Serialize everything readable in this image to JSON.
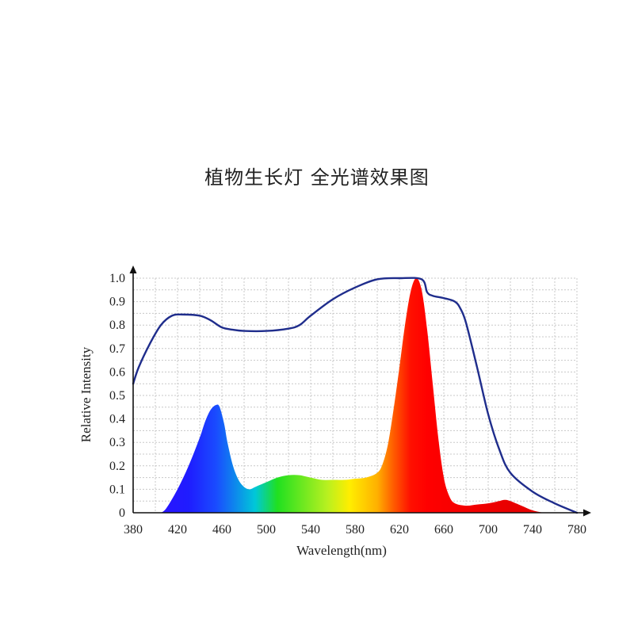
{
  "chart_data": {
    "type": "area",
    "title": "植物生长灯 全光谱效果图",
    "xlabel": "Wavelength(nm)",
    "ylabel": "Relative Intensity",
    "xlim": [
      380,
      780
    ],
    "ylim": [
      0,
      1.0
    ],
    "x_ticks": [
      "380",
      "420",
      "460",
      "500",
      "540",
      "580",
      "620",
      "660",
      "700",
      "740",
      "780"
    ],
    "y_ticks": [
      "0",
      "0.1",
      "0.2",
      "0.3",
      "0.4",
      "0.5",
      "0.6",
      "0.7",
      "0.8",
      "0.9",
      "1.0"
    ],
    "grid": true,
    "series": [
      {
        "kind": "line",
        "color": "#1f2d8c",
        "x": [
          380,
          385,
          395,
          405,
          415,
          425,
          440,
          450,
          460,
          470,
          480,
          500,
          520,
          530,
          540,
          560,
          580,
          600,
          620,
          640,
          645,
          650,
          660,
          670,
          675,
          680,
          690,
          700,
          710,
          720,
          740,
          760,
          780
        ],
        "y": [
          0.55,
          0.62,
          0.72,
          0.8,
          0.84,
          0.845,
          0.84,
          0.82,
          0.79,
          0.78,
          0.775,
          0.775,
          0.785,
          0.8,
          0.84,
          0.91,
          0.96,
          0.995,
          1.0,
          0.995,
          0.94,
          0.925,
          0.915,
          0.9,
          0.87,
          0.81,
          0.62,
          0.42,
          0.27,
          0.17,
          0.09,
          0.04,
          0.0
        ]
      },
      {
        "kind": "area",
        "fill": "spectrum",
        "x": [
          405,
          410,
          420,
          430,
          440,
          445,
          450,
          455,
          458,
          462,
          465,
          470,
          475,
          480,
          485,
          490,
          500,
          510,
          520,
          530,
          540,
          550,
          560,
          570,
          580,
          590,
          600,
          605,
          610,
          615,
          620,
          625,
          630,
          635,
          640,
          645,
          650,
          655,
          660,
          665,
          670,
          680,
          690,
          700,
          710,
          715,
          720,
          730,
          740,
          750
        ],
        "y": [
          0.0,
          0.02,
          0.1,
          0.2,
          0.32,
          0.39,
          0.44,
          0.46,
          0.45,
          0.38,
          0.3,
          0.2,
          0.14,
          0.11,
          0.1,
          0.11,
          0.13,
          0.15,
          0.16,
          0.16,
          0.15,
          0.14,
          0.14,
          0.14,
          0.145,
          0.15,
          0.17,
          0.21,
          0.3,
          0.45,
          0.62,
          0.8,
          0.94,
          1.0,
          0.95,
          0.78,
          0.55,
          0.32,
          0.15,
          0.07,
          0.04,
          0.03,
          0.035,
          0.04,
          0.05,
          0.055,
          0.05,
          0.03,
          0.01,
          0.0
        ]
      }
    ]
  }
}
